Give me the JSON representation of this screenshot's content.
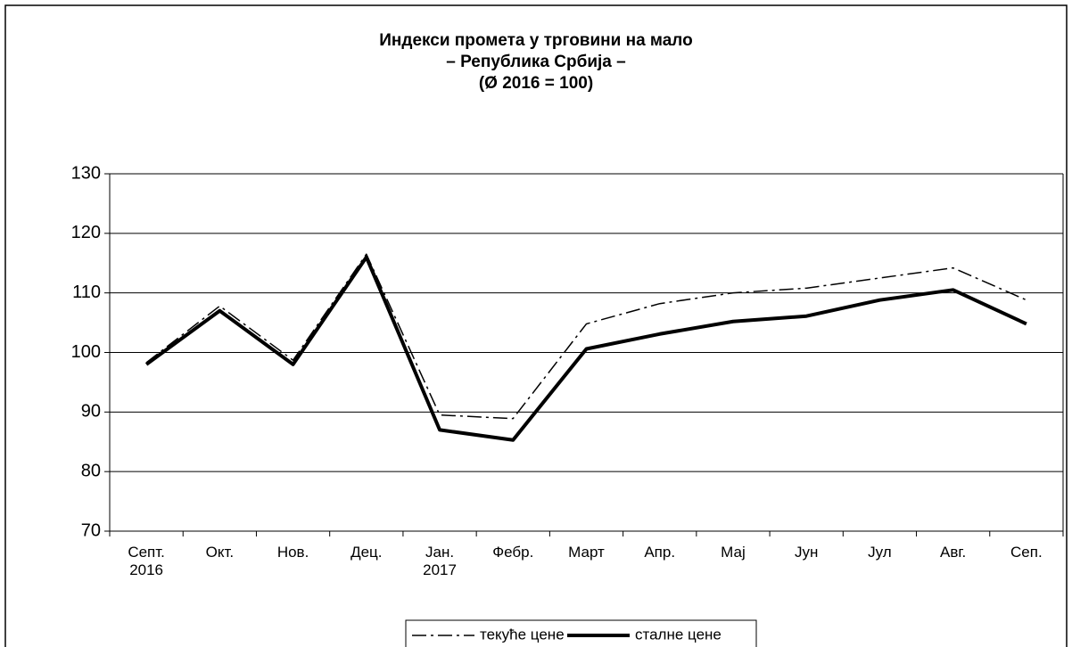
{
  "chart_data": {
    "type": "line",
    "title": [
      "Индекси промета у трговини на мало",
      "– Република Србија –",
      "(Ø 2016 = 100)"
    ],
    "categories": [
      "Септ.\n2016",
      "Окт.",
      "Нов.",
      "Дец.",
      "Јан.\n2017",
      "Фебр.",
      "Март",
      "Апр.",
      "Мај",
      "Јун",
      "Јул",
      "Авг.",
      "Сеп."
    ],
    "series": [
      {
        "name": "текуће цене",
        "color": "#000000",
        "style": "dashdot",
        "values": [
          98.3,
          107.8,
          98.7,
          116.5,
          89.5,
          88.9,
          104.8,
          108.2,
          110,
          110.8,
          112.5,
          114.2,
          108.8
        ]
      },
      {
        "name": "сталне цене",
        "color": "#000000",
        "style": "solid",
        "values": [
          98,
          107,
          98,
          116,
          87,
          85.3,
          100.6,
          103.1,
          105.2,
          106.1,
          108.8,
          110.5,
          104.8
        ]
      }
    ],
    "ylim": [
      70,
      130
    ],
    "yticks": [
      70,
      80,
      90,
      100,
      110,
      120,
      130
    ],
    "grid": true,
    "legend": "bottom"
  }
}
